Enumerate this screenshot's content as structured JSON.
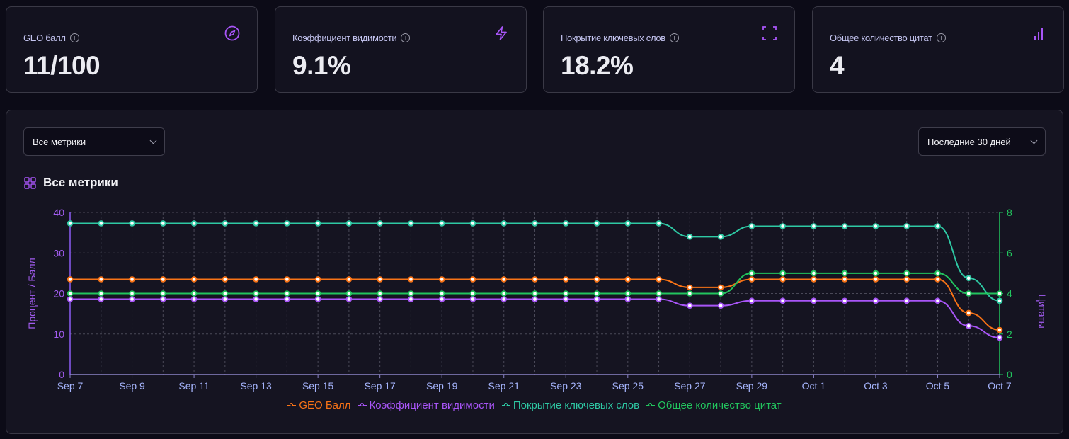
{
  "cards": [
    {
      "label": "GEO балл",
      "value": "11/100",
      "icon": "compass-icon"
    },
    {
      "label": "Коэффициент видимости",
      "value": "9.1%",
      "icon": "lightning-icon"
    },
    {
      "label": "Покрытие ключевых слов",
      "value": "18.2%",
      "icon": "scan-icon"
    },
    {
      "label": "Общее количество цитат",
      "value": "4",
      "icon": "bar-chart-icon"
    }
  ],
  "filters": {
    "metric_select": "Все метрики",
    "period_select": "Последние 30 дней"
  },
  "section_title": "Все метрики",
  "colors": {
    "geo": "#f97316",
    "visibility": "#a855f7",
    "keywords": "#2ec9a4",
    "citations": "#22c55e",
    "accent": "#a855f7"
  },
  "chart_data": {
    "type": "line",
    "title": "Все метрики",
    "ylabel": "Процент / Балл",
    "y2label": "Цитаты",
    "ylim": [
      0,
      40
    ],
    "y2lim": [
      0,
      8
    ],
    "yticks": [
      "0",
      "10",
      "20",
      "30",
      "40"
    ],
    "y2ticks": [
      "0",
      "2",
      "4",
      "6",
      "8"
    ],
    "x": [
      "Sep 7",
      "Sep 8",
      "Sep 9",
      "Sep 10",
      "Sep 11",
      "Sep 12",
      "Sep 13",
      "Sep 14",
      "Sep 15",
      "Sep 16",
      "Sep 17",
      "Sep 18",
      "Sep 19",
      "Sep 20",
      "Sep 21",
      "Sep 22",
      "Sep 23",
      "Sep 24",
      "Sep 25",
      "Sep 26",
      "Sep 27",
      "Sep 28",
      "Sep 29",
      "Sep 30",
      "Oct 1",
      "Oct 2",
      "Oct 3",
      "Oct 4",
      "Oct 5",
      "Oct 6",
      "Oct 7"
    ],
    "xticks": [
      "Sep 7",
      "Sep 9",
      "Sep 11",
      "Sep 13",
      "Sep 15",
      "Sep 17",
      "Sep 19",
      "Sep 21",
      "Sep 23",
      "Sep 25",
      "Sep 27",
      "Sep 29",
      "Oct 1",
      "Oct 3",
      "Oct 5",
      "Oct 7"
    ],
    "grid": true,
    "legend_position": "bottom",
    "series": [
      {
        "name": "GEO Балл",
        "key": "geo",
        "axis": "left",
        "values": [
          23.5,
          23.5,
          23.5,
          23.5,
          23.5,
          23.5,
          23.5,
          23.5,
          23.5,
          23.5,
          23.5,
          23.5,
          23.5,
          23.5,
          23.5,
          23.5,
          23.5,
          23.5,
          23.5,
          23.5,
          21.5,
          21.5,
          23.5,
          23.5,
          23.5,
          23.5,
          23.5,
          23.5,
          23.5,
          15.2,
          11
        ]
      },
      {
        "name": "Коэффициент видимости",
        "key": "visibility",
        "axis": "left",
        "values": [
          18.6,
          18.6,
          18.6,
          18.6,
          18.6,
          18.6,
          18.6,
          18.6,
          18.6,
          18.6,
          18.6,
          18.6,
          18.6,
          18.6,
          18.6,
          18.6,
          18.6,
          18.6,
          18.6,
          18.6,
          17,
          17,
          18.2,
          18.2,
          18.2,
          18.2,
          18.2,
          18.2,
          18.2,
          12,
          9.1
        ]
      },
      {
        "name": "Покрытие ключевых слов",
        "key": "keywords",
        "axis": "left",
        "values": [
          37.3,
          37.3,
          37.3,
          37.3,
          37.3,
          37.3,
          37.3,
          37.3,
          37.3,
          37.3,
          37.3,
          37.3,
          37.3,
          37.3,
          37.3,
          37.3,
          37.3,
          37.3,
          37.3,
          37.3,
          34,
          34,
          36.6,
          36.6,
          36.6,
          36.6,
          36.6,
          36.6,
          36.6,
          23.8,
          18.2
        ]
      },
      {
        "name": "Общее количество цитат",
        "key": "citations",
        "axis": "right",
        "values": [
          4,
          4,
          4,
          4,
          4,
          4,
          4,
          4,
          4,
          4,
          4,
          4,
          4,
          4,
          4,
          4,
          4,
          4,
          4,
          4,
          4,
          4,
          5,
          5,
          5,
          5,
          5,
          5,
          5,
          4,
          4
        ]
      }
    ]
  }
}
